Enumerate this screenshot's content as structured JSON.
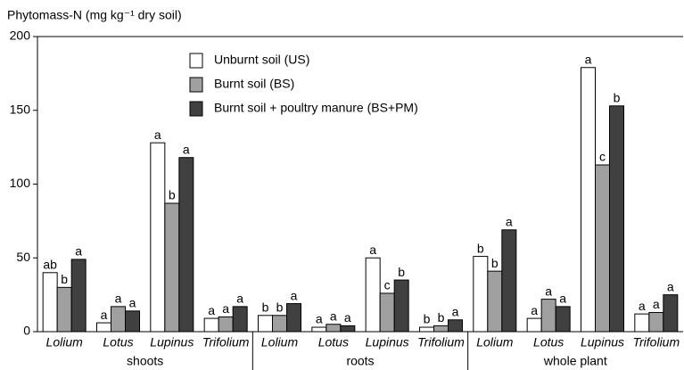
{
  "chart_data": {
    "type": "bar",
    "ylabel": "Phytomass-N (mg kg⁻¹ dry soil)",
    "groups": [
      "shoots",
      "roots",
      "whole plant"
    ],
    "categories": [
      "Lolium",
      "Lotus",
      "Lupinus",
      "Trifolium",
      "Lolium",
      "Lotus",
      "Lupinus",
      "Trifolium",
      "Lolium",
      "Lotus",
      "Lupinus",
      "Trifolium"
    ],
    "series": [
      {
        "name": "Unburnt soil (US)",
        "color": "#ffffff",
        "values": [
          40,
          6,
          128,
          9,
          11,
          3,
          50,
          3,
          51,
          9,
          179,
          12
        ],
        "labels": [
          "ab",
          "a",
          "a",
          "a",
          "b",
          "a",
          "a",
          "b",
          "b",
          "a",
          "a",
          "a"
        ]
      },
      {
        "name": "Burnt soil (BS)",
        "color": "#a0a0a0",
        "values": [
          30,
          17,
          87,
          10,
          11,
          5,
          26,
          4,
          41,
          22,
          113,
          13
        ],
        "labels": [
          "b",
          "a",
          "b",
          "a",
          "b",
          "a",
          "c",
          "b",
          "b",
          "a",
          "c",
          "a"
        ]
      },
      {
        "name": "Burnt soil + poultry manure (BS+PM)",
        "color": "#404040",
        "values": [
          49,
          14,
          118,
          17,
          19,
          4,
          35,
          8,
          69,
          17,
          153,
          25
        ],
        "labels": [
          "a",
          "a",
          "a",
          "a",
          "a",
          "a",
          "b",
          "a",
          "a",
          "a",
          "b",
          "a"
        ]
      }
    ],
    "ylim": [
      0,
      200
    ],
    "yticks": [
      0,
      50,
      100,
      150,
      200
    ]
  }
}
